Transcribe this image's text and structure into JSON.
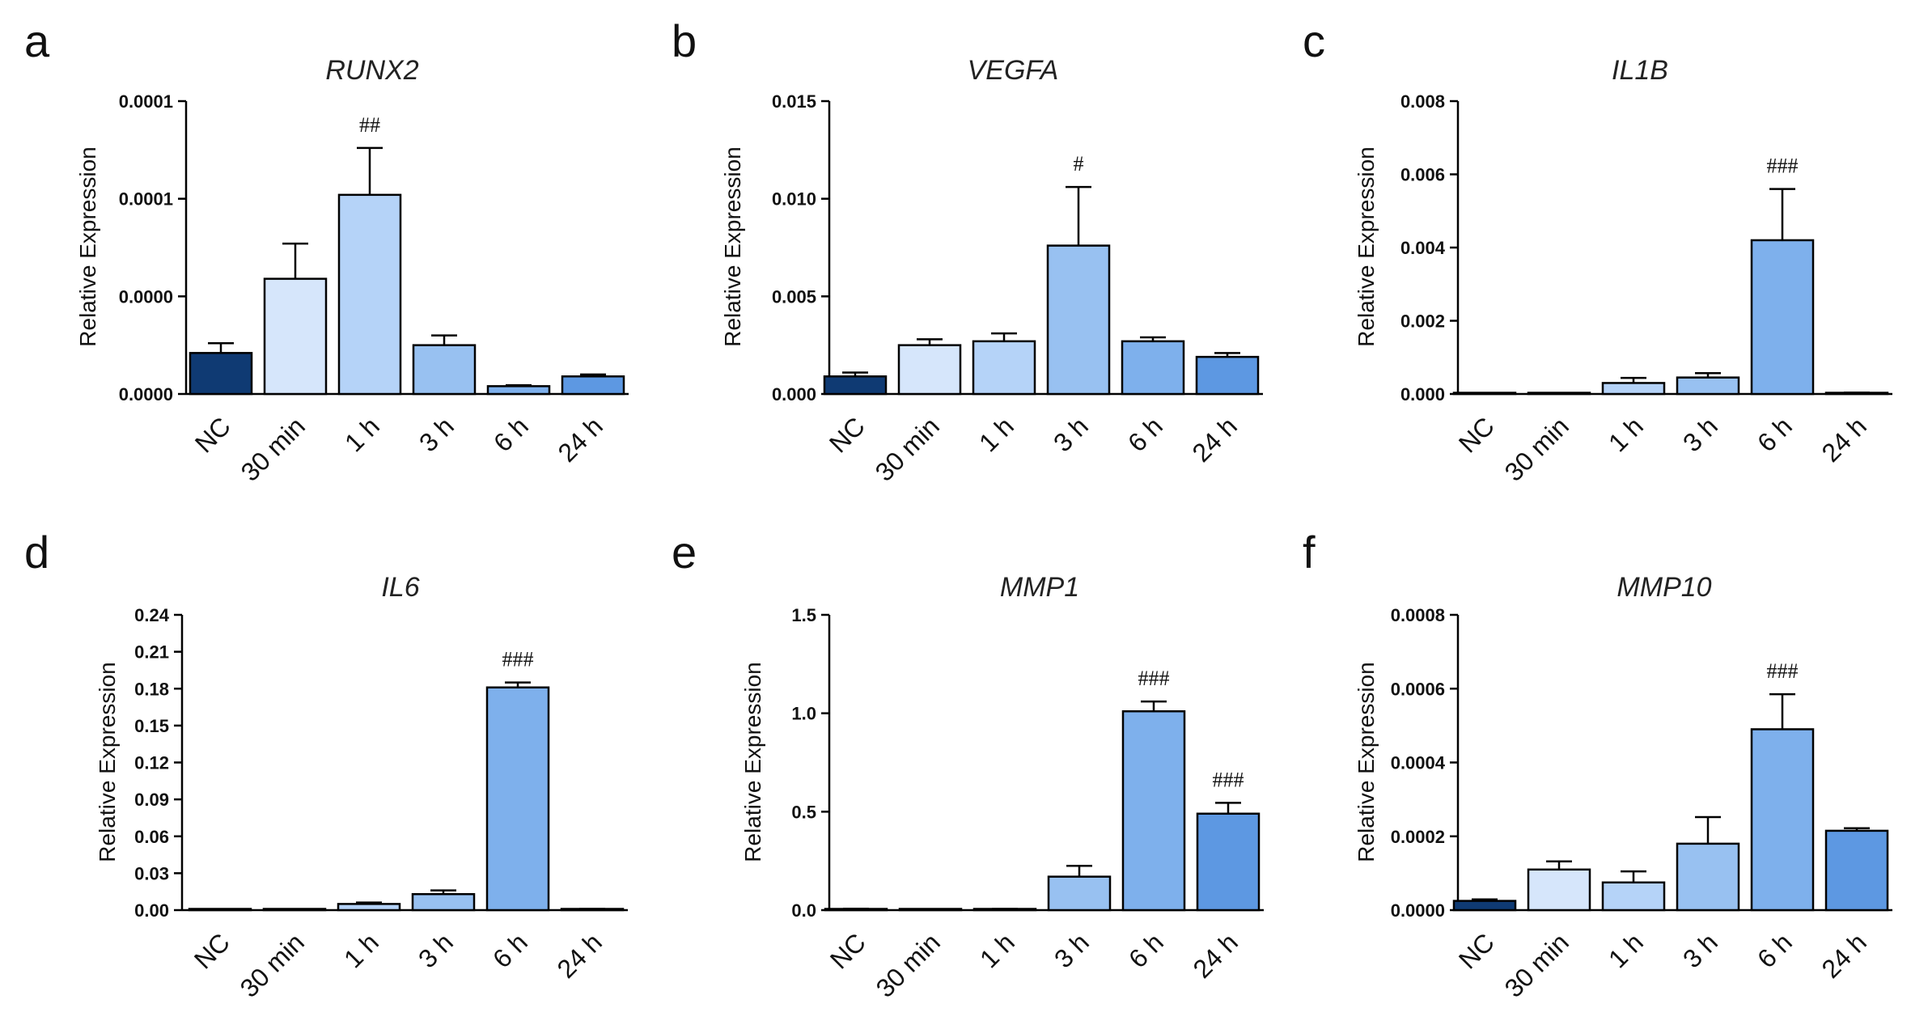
{
  "palette": [
    "#0f3a73",
    "#d6e6fb",
    "#b5d3f8",
    "#98c1f1",
    "#7eb0ec",
    "#5d98e2"
  ],
  "chart_data": [
    {
      "type": "bar",
      "panel": "a",
      "title": "RUNX2",
      "ylabel": "Relative Expression",
      "xlabel": "",
      "categories": [
        "NC",
        "30 min",
        "1 h",
        "3 h",
        "6 h",
        "24 h"
      ],
      "yticks": [
        0,
        5e-05,
        0.0001,
        0.00015
      ],
      "yticklabels": [
        "0.0000",
        "0.0000",
        "0.0001",
        "0.0001"
      ],
      "ylim": [
        0,
        0.00015
      ],
      "values": [
        2.1e-05,
        5.9e-05,
        0.000102,
        2.5e-05,
        4e-06,
        9e-06
      ],
      "errors": [
        5e-06,
        1.8e-05,
        2.4e-05,
        5e-06,
        5e-07,
        1e-06
      ],
      "significance": [
        "",
        "",
        "##",
        "",
        "",
        ""
      ]
    },
    {
      "type": "bar",
      "panel": "b",
      "title": "VEGFA",
      "ylabel": "Relative Expression",
      "xlabel": "",
      "categories": [
        "NC",
        "30 min",
        "1 h",
        "3 h",
        "6 h",
        "24 h"
      ],
      "yticks": [
        0,
        0.005,
        0.01,
        0.015
      ],
      "yticklabels": [
        "0.000",
        "0.005",
        "0.010",
        "0.015"
      ],
      "ylim": [
        0,
        0.015
      ],
      "values": [
        0.0009,
        0.0025,
        0.0027,
        0.0076,
        0.0027,
        0.0019
      ],
      "errors": [
        0.0002,
        0.0003,
        0.0004,
        0.003,
        0.0002,
        0.0002
      ],
      "significance": [
        "",
        "",
        "",
        "#",
        "",
        ""
      ]
    },
    {
      "type": "bar",
      "panel": "c",
      "title": "IL1B",
      "ylabel": "Relative Expression",
      "xlabel": "",
      "categories": [
        "NC",
        "30 min",
        "1 h",
        "3 h",
        "6 h",
        "24 h"
      ],
      "yticks": [
        0,
        0.002,
        0.004,
        0.006,
        0.008
      ],
      "yticklabels": [
        "0.000",
        "0.002",
        "0.004",
        "0.006",
        "0.008"
      ],
      "ylim": [
        0,
        0.008
      ],
      "values": [
        1e-05,
        1e-05,
        0.0003,
        0.00045,
        0.0042,
        3e-05
      ],
      "errors": [
        5e-06,
        5e-06,
        0.00014,
        0.00012,
        0.0014,
        1e-05
      ],
      "significance": [
        "",
        "",
        "",
        "",
        "###",
        ""
      ]
    },
    {
      "type": "bar",
      "panel": "d",
      "title": "IL6",
      "ylabel": "Relative Expression",
      "xlabel": "",
      "categories": [
        "NC",
        "30 min",
        "1 h",
        "3 h",
        "6 h",
        "24 h"
      ],
      "yticks": [
        0,
        0.03,
        0.06,
        0.09,
        0.12,
        0.15,
        0.18,
        0.21,
        0.24
      ],
      "yticklabels": [
        "0.00",
        "0.03",
        "0.06",
        "0.09",
        "0.12",
        "0.15",
        "0.18",
        "0.21",
        "0.24"
      ],
      "ylim": [
        0,
        0.24
      ],
      "values": [
        0.0002,
        0.0005,
        0.005,
        0.013,
        0.181,
        0.0008
      ],
      "errors": [
        0.0001,
        0.0001,
        0.0012,
        0.003,
        0.004,
        0.0002
      ],
      "significance": [
        "",
        "",
        "",
        "",
        "###",
        ""
      ]
    },
    {
      "type": "bar",
      "panel": "e",
      "title": "MMP1",
      "ylabel": "Relative Expression",
      "xlabel": "",
      "categories": [
        "NC",
        "30 min",
        "1 h",
        "3 h",
        "6 h",
        "24 h"
      ],
      "yticks": [
        0,
        0.5,
        1.0,
        1.5
      ],
      "yticklabels": [
        "0.0",
        "0.5",
        "1.0",
        "1.5"
      ],
      "ylim": [
        0,
        1.5
      ],
      "values": [
        0.005,
        0.002,
        0.004,
        0.17,
        1.01,
        0.49
      ],
      "errors": [
        0.002,
        0.001,
        0.002,
        0.055,
        0.05,
        0.055
      ],
      "significance": [
        "",
        "",
        "",
        "",
        "###",
        "###"
      ]
    },
    {
      "type": "bar",
      "panel": "f",
      "title": "MMP10",
      "ylabel": "Relative Expression",
      "xlabel": "",
      "categories": [
        "NC",
        "30 min",
        "1 h",
        "3 h",
        "6 h",
        "24 h"
      ],
      "yticks": [
        0,
        0.0002,
        0.0004,
        0.0006,
        0.0008
      ],
      "yticklabels": [
        "0.0000",
        "0.0002",
        "0.0004",
        "0.0006",
        "0.0008"
      ],
      "ylim": [
        0,
        0.0008
      ],
      "values": [
        2.5e-05,
        0.00011,
        7.5e-05,
        0.00018,
        0.00049,
        0.000215
      ],
      "errors": [
        4e-06,
        2.2e-05,
        3e-05,
        7.2e-05,
        9.5e-05,
        7e-06
      ],
      "significance": [
        "",
        "",
        "",
        "",
        "###",
        ""
      ]
    }
  ]
}
